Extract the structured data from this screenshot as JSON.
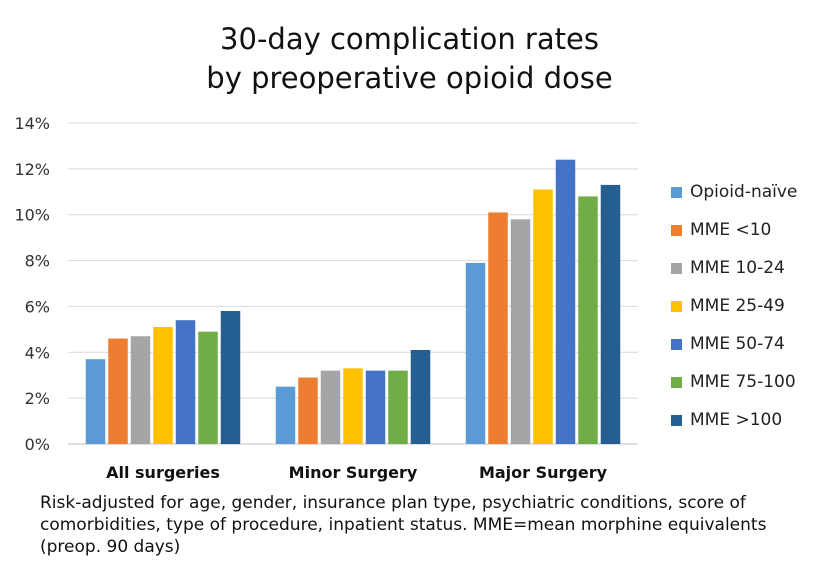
{
  "chart_data": {
    "type": "bar",
    "title": [
      "30-day complication rates",
      "by preoperative opioid dose"
    ],
    "categories": [
      "All surgeries",
      "Minor Surgery",
      "Major Surgery"
    ],
    "ylim": [
      0,
      14
    ],
    "yticks": [
      "0%",
      "2%",
      "4%",
      "6%",
      "8%",
      "10%",
      "12%",
      "14%"
    ],
    "grid": true,
    "legend_position": "right",
    "series": [
      {
        "name": "Opioid-naïve",
        "color": "#5B9BD5",
        "values": [
          3.7,
          2.5,
          7.9
        ]
      },
      {
        "name": "MME <10",
        "color": "#ED7D31",
        "values": [
          4.6,
          2.9,
          10.1
        ]
      },
      {
        "name": "MME 10-24",
        "color": "#A5A5A5",
        "values": [
          4.7,
          3.2,
          9.8
        ]
      },
      {
        "name": "MME 25-49",
        "color": "#FFC000",
        "values": [
          5.1,
          3.3,
          11.1
        ]
      },
      {
        "name": "MME 50-74",
        "color": "#4472C4",
        "values": [
          5.4,
          3.2,
          12.4
        ]
      },
      {
        "name": "MME 75-100",
        "color": "#70AD47",
        "values": [
          4.9,
          3.2,
          10.8
        ]
      },
      {
        "name": "MME >100",
        "color": "#255E91",
        "values": [
          5.8,
          4.1,
          11.3
        ]
      }
    ],
    "footnote": [
      "Risk-adjusted for age, gender, insurance plan type, psychiatric conditions, score of",
      "comorbidities, type of procedure, inpatient status. MME=mean morphine equivalents",
      "(preop. 90 days)"
    ]
  }
}
